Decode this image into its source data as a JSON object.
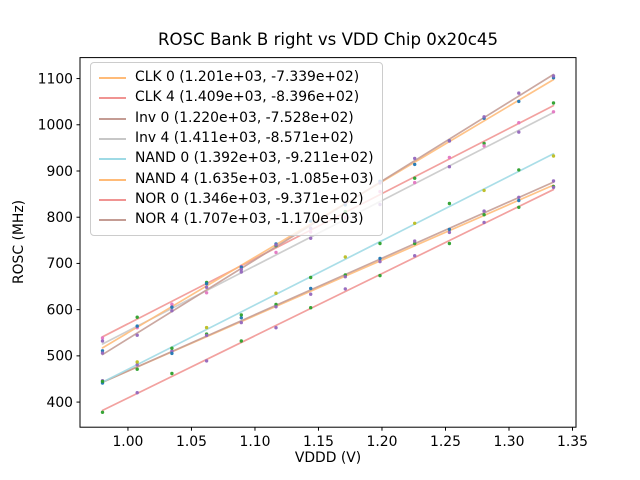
{
  "figure": {
    "background": "#ffffff"
  },
  "colors": {
    "spine": "#000000",
    "tick": "#000000",
    "text": "#000000",
    "legend_border": "#cccccc",
    "legend_background": "rgba(255,255,255,0.8)"
  },
  "chart_data": {
    "type": "scatter",
    "title": "ROSC Bank B right vs VDD Chip 0x20c45",
    "xlabel": "VDDD (V)",
    "ylabel": "ROSC (MHz)",
    "xlim": [
      0.96225,
      1.35275
    ],
    "ylim": [
      345.65,
      1145.35
    ],
    "xticks": [
      1.0,
      1.05,
      1.1,
      1.15,
      1.2,
      1.25,
      1.3,
      1.35
    ],
    "xtick_labels": [
      "1.00",
      "1.05",
      "1.10",
      "1.15",
      "1.20",
      "1.25",
      "1.30",
      "1.35"
    ],
    "yticks": [
      400,
      500,
      600,
      700,
      800,
      900,
      1000,
      1100
    ],
    "ytick_labels": [
      "400",
      "500",
      "600",
      "700",
      "800",
      "900",
      "1000",
      "1100"
    ],
    "grid": false,
    "legend_position": "upper left",
    "x_fit_range": [
      0.98,
      1.335
    ],
    "points_per_series": 14,
    "jitter_mhz": [
      4,
      -6,
      2,
      7,
      -3,
      5,
      -8,
      3,
      -2,
      6,
      -5,
      2,
      8,
      -4
    ],
    "series": [
      {
        "name": "CLK 0",
        "label": "CLK 0 (1.201e+03, -7.339e+02)",
        "slope": 1201.0,
        "intercept": -733.9,
        "line_color": "#ffbb78",
        "point_colors": [
          "#9467bd",
          "#2ca02c"
        ]
      },
      {
        "name": "CLK 4",
        "label": "CLK 4 (1.409e+03, -8.396e+02)",
        "slope": 1409.0,
        "intercept": -839.6,
        "line_color": "#f09492",
        "point_colors": [
          "#2ca02c",
          "#e377c2"
        ]
      },
      {
        "name": "Inv 0",
        "label": "Inv 0 (1.220e+03, -7.528e+02)",
        "slope": 1220.0,
        "intercept": -752.8,
        "line_color": "#c49c94",
        "point_colors": [
          "#1f77b4",
          "#9467bd"
        ]
      },
      {
        "name": "Inv 4",
        "label": "Inv 4 (1.411e+03, -8.571e+02)",
        "slope": 1411.0,
        "intercept": -857.1,
        "line_color": "#c7c7c7",
        "point_colors": [
          "#e377c2",
          "#9467bd"
        ]
      },
      {
        "name": "NAND 0",
        "label": "NAND 0 (1.392e+03, -9.211e+02)",
        "slope": 1392.0,
        "intercept": -921.1,
        "line_color": "#9edae5",
        "point_colors": [
          "#2ca02c",
          "#bcbd22"
        ]
      },
      {
        "name": "NAND 4",
        "label": "NAND 4 (1.635e+03, -1.085e+03)",
        "slope": 1635.0,
        "intercept": -1085.0,
        "line_color": "#ffbb78",
        "point_colors": [
          "#1f77b4",
          "#1f77b4"
        ]
      },
      {
        "name": "NOR 0",
        "label": "NOR 0 (1.346e+03, -9.371e+02)",
        "slope": 1346.0,
        "intercept": -937.1,
        "line_color": "#f09492",
        "point_colors": [
          "#2ca02c",
          "#9467bd"
        ]
      },
      {
        "name": "NOR 4",
        "label": "NOR 4 (1.707e+03, -1.170e+03)",
        "slope": 1707.0,
        "intercept": -1170.0,
        "line_color": "#c49c94",
        "point_colors": [
          "#9467bd",
          "#9467bd"
        ]
      }
    ]
  }
}
